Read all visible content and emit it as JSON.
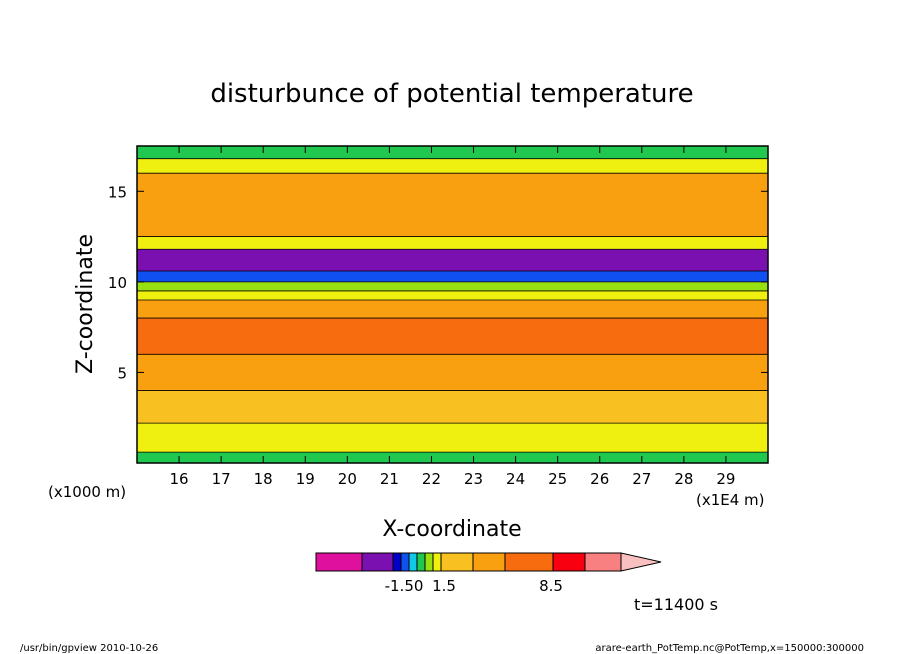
{
  "chart_data": {
    "type": "heatmap",
    "title": "disturbunce of potential temperature",
    "xlabel": "X-coordinate",
    "ylabel": "Z-coordinate",
    "x_unit_left": "(x1000 m)",
    "x_unit_right": "(x1E4 m)",
    "xlim": [
      15.0,
      30.0
    ],
    "ylim": [
      0,
      17.5
    ],
    "x_ticks": [
      16,
      17,
      18,
      19,
      20,
      21,
      22,
      23,
      24,
      25,
      26,
      27,
      28,
      29
    ],
    "y_ticks": [
      5,
      10,
      15
    ],
    "colorbar": {
      "colors": [
        "#e0109e",
        "#7a10b0",
        "#0000c8",
        "#1050f0",
        "#10c8e8",
        "#20c850",
        "#98e010",
        "#f0f010",
        "#f8c020",
        "#f8a010",
        "#f86c10",
        "#f80010",
        "#f88080",
        "#f8c0c0"
      ],
      "labels": [
        "-1.50",
        "1.5",
        "8.5"
      ]
    },
    "bands": [
      {
        "z0": 0,
        "z1": 0.6,
        "color": "#20c850"
      },
      {
        "z0": 0.6,
        "z1": 2.2,
        "color": "#f0f010"
      },
      {
        "z0": 2.2,
        "z1": 4.0,
        "color": "#f8c020"
      },
      {
        "z0": 4.0,
        "z1": 6.0,
        "color": "#f8a010"
      },
      {
        "z0": 6.0,
        "z1": 8.0,
        "color": "#f86c10"
      },
      {
        "z0": 8.0,
        "z1": 9.0,
        "color": "#f8a010"
      },
      {
        "z0": 9.0,
        "z1": 9.5,
        "color": "#f0f010"
      },
      {
        "z0": 9.5,
        "z1": 10.0,
        "color": "#98e010"
      },
      {
        "z0": 10.0,
        "z1": 10.6,
        "color": "#1050f0"
      },
      {
        "z0": 10.6,
        "z1": 11.8,
        "color": "#7a10b0"
      },
      {
        "z0": 11.8,
        "z1": 12.5,
        "color": "#f0f010"
      },
      {
        "z0": 12.5,
        "z1": 16.0,
        "color": "#f8a010"
      },
      {
        "z0": 16.0,
        "z1": 16.8,
        "color": "#f0f010"
      },
      {
        "z0": 16.8,
        "z1": 17.5,
        "color": "#20c850"
      }
    ]
  },
  "time_label": "t=11400 s",
  "footer": {
    "left": "/usr/bin/gpview  2010-10-26",
    "right": "arare-earth_PotTemp.nc@PotTemp,x=150000:300000"
  }
}
